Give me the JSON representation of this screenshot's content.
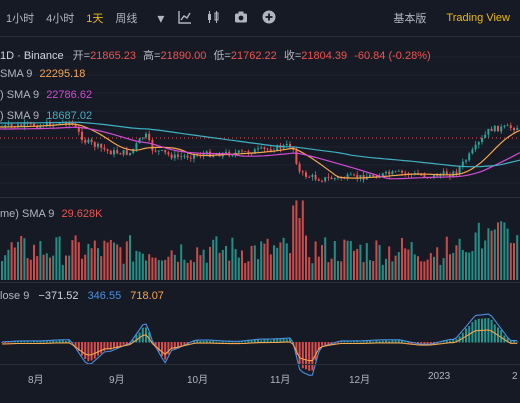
{
  "toolbar": {
    "timeframes": [
      "1小时",
      "4小时",
      "1天",
      "周线"
    ],
    "active_timeframe": "1天",
    "basic_view": "基本版",
    "tradingview": "Trading View",
    "accent": "#f0b90b"
  },
  "legend": {
    "symbol": "1D · Binance",
    "open_label": "开=",
    "open": "21865.23",
    "high_label": "高=",
    "high": "21890.00",
    "low_label": "低=",
    "low": "21762.22",
    "close_label": "收=",
    "close": "21804.39",
    "change": "-60.84 (-0.28%)",
    "ma1_label": "SMA 9",
    "ma1_value": "22295.18",
    "ma2_label": ") SMA 9",
    "ma2_value": "22786.62",
    "ma3_label": ") SMA 9",
    "ma3_value": "18687.02"
  },
  "volume": {
    "label": "me) SMA 9",
    "value": "29.628K"
  },
  "macd": {
    "label": "lose 9",
    "hist": "−371.52",
    "macd": "346.55",
    "signal": "718.07"
  },
  "xaxis": [
    "8月",
    "9月",
    "10月",
    "11月",
    "12月",
    "2023",
    "2"
  ],
  "colors": {
    "up": "#26a69a",
    "down": "#ef5350",
    "ma1": "#f6a64c",
    "ma2": "#d24bd4",
    "ma3": "#3fb1c2"
  }
}
